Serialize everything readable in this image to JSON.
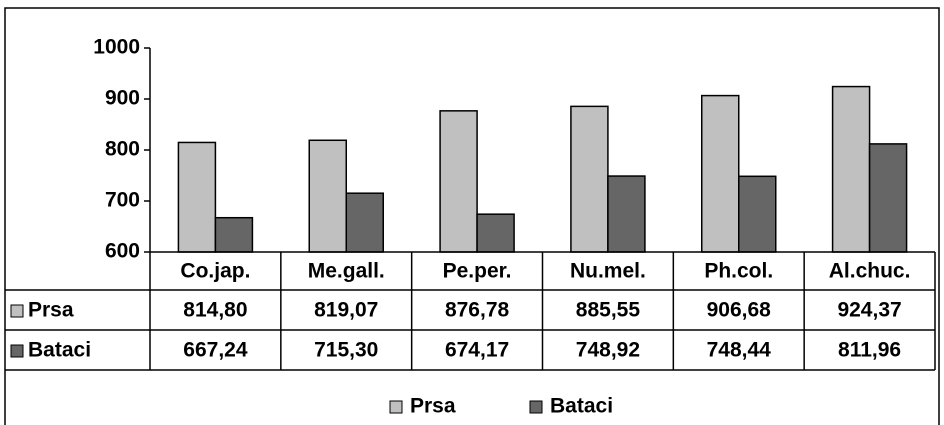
{
  "chart_data": {
    "type": "bar",
    "categories": [
      "Co.jap.",
      "Me.gall.",
      "Pe.per.",
      "Nu.mel.",
      "Ph.col.",
      "Al.chuc."
    ],
    "series": [
      {
        "name": "Prsa",
        "color": "#c0c0c0",
        "values": [
          814.8,
          819.07,
          876.78,
          885.55,
          906.68,
          924.37
        ],
        "value_labels": [
          "814,80",
          "819,07",
          "876,78",
          "885,55",
          "906,68",
          "924,37"
        ]
      },
      {
        "name": "Bataci",
        "color": "#666666",
        "values": [
          667.24,
          715.3,
          674.17,
          748.92,
          748.44,
          811.96
        ],
        "value_labels": [
          "667,24",
          "715,30",
          "674,17",
          "748,92",
          "748,44",
          "811,96"
        ]
      }
    ],
    "ylim": [
      600,
      1000
    ],
    "yticks": [
      600,
      700,
      800,
      900,
      1000
    ]
  }
}
